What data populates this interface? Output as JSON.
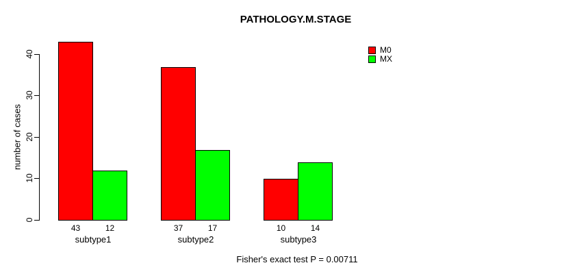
{
  "chart_data": {
    "type": "bar",
    "title": "PATHOLOGY.M.STAGE",
    "ylabel": "number of cases",
    "xlabel": "",
    "categories": [
      "subtype1",
      "subtype2",
      "subtype3"
    ],
    "series": [
      {
        "name": "M0",
        "color": "#ff0000",
        "values": [
          43,
          37,
          10
        ]
      },
      {
        "name": "MX",
        "color": "#00ff00",
        "values": [
          12,
          17,
          14
        ]
      }
    ],
    "bar_value_labels": [
      [
        43,
        12
      ],
      [
        37,
        17
      ],
      [
        10,
        14
      ]
    ],
    "yticks": [
      0,
      10,
      20,
      30,
      40
    ],
    "ylim": [
      0,
      43
    ],
    "grid": false,
    "legend_position": "top-right",
    "annotation": "Fisher's exact test P = 0.00711"
  },
  "colors": {
    "background": "#ffffff",
    "axis": "#000000",
    "text": "#000000",
    "series_m0": "#ff0000",
    "series_mx": "#00ff00"
  }
}
